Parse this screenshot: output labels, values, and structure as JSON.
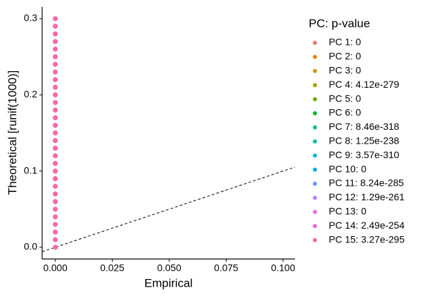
{
  "chart_data": {
    "type": "scatter",
    "x_label": "Empirical",
    "y_label": "Theoretical [runif(1000)]",
    "legend_title": "PC: p-value",
    "xlim": [
      -0.0058,
      0.1052
    ],
    "ylim": [
      -0.0154,
      0.3154
    ],
    "xticks": [
      {
        "value": 0,
        "label": "0.000"
      },
      {
        "value": 0.025,
        "label": "0.025"
      },
      {
        "value": 0.05,
        "label": "0.050"
      },
      {
        "value": 0.075,
        "label": "0.075"
      },
      {
        "value": 0.1,
        "label": "0.100"
      }
    ],
    "yticks": [
      {
        "value": 0,
        "label": "0.0"
      },
      0.1,
      0.2,
      0.3
    ],
    "x": [
      0,
      0,
      0,
      0,
      0,
      0,
      0,
      0,
      0,
      0,
      0,
      0,
      0,
      0,
      0,
      0,
      0,
      0,
      0,
      0,
      0,
      0,
      0,
      0,
      0,
      0,
      0,
      0,
      0,
      0,
      0
    ],
    "series": [
      {
        "name": "PC 1: 0",
        "color": "#F8766D",
        "values": [
          0,
          0.01,
          0.02,
          0.03,
          0.04,
          0.05,
          0.06,
          0.07,
          0.08,
          0.09,
          0.1,
          0.11,
          0.12,
          0.13,
          0.14,
          0.15,
          0.16,
          0.17,
          0.18,
          0.19,
          0.2,
          0.21,
          0.22,
          0.23,
          0.24,
          0.25,
          0.26,
          0.27,
          0.28,
          0.29,
          0.3
        ]
      },
      {
        "name": "PC 2: 0",
        "color": "#E58700",
        "values": [
          0,
          0.01,
          0.02,
          0.03,
          0.04,
          0.05,
          0.06,
          0.07,
          0.08,
          0.09,
          0.1,
          0.11,
          0.12,
          0.13,
          0.14,
          0.15,
          0.16,
          0.17,
          0.18,
          0.19,
          0.2,
          0.21,
          0.22,
          0.23,
          0.24,
          0.25,
          0.26,
          0.27,
          0.28,
          0.29,
          0.3
        ]
      },
      {
        "name": "PC 3: 0",
        "color": "#C99800",
        "values": [
          0,
          0.01,
          0.02,
          0.03,
          0.04,
          0.05,
          0.06,
          0.07,
          0.08,
          0.09,
          0.1,
          0.11,
          0.12,
          0.13,
          0.14,
          0.15,
          0.16,
          0.17,
          0.18,
          0.19,
          0.2,
          0.21,
          0.22,
          0.23,
          0.24,
          0.25,
          0.26,
          0.27,
          0.28,
          0.29,
          0.3
        ]
      },
      {
        "name": "PC 4: 4.12e-279",
        "color": "#A3A500",
        "values": [
          0,
          0.01,
          0.02,
          0.03,
          0.04,
          0.05,
          0.06,
          0.07,
          0.08,
          0.09,
          0.1,
          0.11,
          0.12,
          0.13,
          0.14,
          0.15,
          0.16,
          0.17,
          0.18,
          0.19,
          0.2,
          0.21,
          0.22,
          0.23,
          0.24,
          0.25,
          0.26,
          0.27,
          0.28,
          0.29,
          0.3
        ]
      },
      {
        "name": "PC 5: 0",
        "color": "#6BB100",
        "values": [
          0,
          0.01,
          0.02,
          0.03,
          0.04,
          0.05,
          0.06,
          0.07,
          0.08,
          0.09,
          0.1,
          0.11,
          0.12,
          0.13,
          0.14,
          0.15,
          0.16,
          0.17,
          0.18,
          0.19,
          0.2,
          0.21,
          0.22,
          0.23,
          0.24,
          0.25,
          0.26,
          0.27,
          0.28,
          0.29,
          0.3
        ]
      },
      {
        "name": "PC 6: 0",
        "color": "#00BA38",
        "values": [
          0,
          0.01,
          0.02,
          0.03,
          0.04,
          0.05,
          0.06,
          0.07,
          0.08,
          0.09,
          0.1,
          0.11,
          0.12,
          0.13,
          0.14,
          0.15,
          0.16,
          0.17,
          0.18,
          0.19,
          0.2,
          0.21,
          0.22,
          0.23,
          0.24,
          0.25,
          0.26,
          0.27,
          0.28,
          0.29,
          0.3
        ]
      },
      {
        "name": "PC 7: 8.46e-318",
        "color": "#00BF7D",
        "values": [
          0,
          0.01,
          0.02,
          0.03,
          0.04,
          0.05,
          0.06,
          0.07,
          0.08,
          0.09,
          0.1,
          0.11,
          0.12,
          0.13,
          0.14,
          0.15,
          0.16,
          0.17,
          0.18,
          0.19,
          0.2,
          0.21,
          0.22,
          0.23,
          0.24,
          0.25,
          0.26,
          0.27,
          0.28,
          0.29,
          0.3
        ]
      },
      {
        "name": "PC 8: 1.25e-238",
        "color": "#00C0AF",
        "values": [
          0,
          0.01,
          0.02,
          0.03,
          0.04,
          0.05,
          0.06,
          0.07,
          0.08,
          0.09,
          0.1,
          0.11,
          0.12,
          0.13,
          0.14,
          0.15,
          0.16,
          0.17,
          0.18,
          0.19,
          0.2,
          0.21,
          0.22,
          0.23,
          0.24,
          0.25,
          0.26,
          0.27,
          0.28,
          0.29,
          0.3
        ]
      },
      {
        "name": "PC 9: 3.57e-310",
        "color": "#00BCD8",
        "values": [
          0,
          0.01,
          0.02,
          0.03,
          0.04,
          0.05,
          0.06,
          0.07,
          0.08,
          0.09,
          0.1,
          0.11,
          0.12,
          0.13,
          0.14,
          0.15,
          0.16,
          0.17,
          0.18,
          0.19,
          0.2,
          0.21,
          0.22,
          0.23,
          0.24,
          0.25,
          0.26,
          0.27,
          0.28,
          0.29,
          0.3
        ]
      },
      {
        "name": "PC 10: 0",
        "color": "#00B0F6",
        "values": [
          0,
          0.01,
          0.02,
          0.03,
          0.04,
          0.05,
          0.06,
          0.07,
          0.08,
          0.09,
          0.1,
          0.11,
          0.12,
          0.13,
          0.14,
          0.15,
          0.16,
          0.17,
          0.18,
          0.19,
          0.2,
          0.21,
          0.22,
          0.23,
          0.24,
          0.25,
          0.26,
          0.27,
          0.28,
          0.29,
          0.3
        ]
      },
      {
        "name": "PC 11: 8.24e-285",
        "color": "#619CFF",
        "values": [
          0,
          0.01,
          0.02,
          0.03,
          0.04,
          0.05,
          0.06,
          0.07,
          0.08,
          0.09,
          0.1,
          0.11,
          0.12,
          0.13,
          0.14,
          0.15,
          0.16,
          0.17,
          0.18,
          0.19,
          0.2,
          0.21,
          0.22,
          0.23,
          0.24,
          0.25,
          0.26,
          0.27,
          0.28,
          0.29,
          0.3
        ]
      },
      {
        "name": "PC 12: 1.29e-261",
        "color": "#B983FF",
        "values": [
          0,
          0.01,
          0.02,
          0.03,
          0.04,
          0.05,
          0.06,
          0.07,
          0.08,
          0.09,
          0.1,
          0.11,
          0.12,
          0.13,
          0.14,
          0.15,
          0.16,
          0.17,
          0.18,
          0.19,
          0.2,
          0.21,
          0.22,
          0.23,
          0.24,
          0.25,
          0.26,
          0.27,
          0.28,
          0.29,
          0.3
        ]
      },
      {
        "name": "PC 13: 0",
        "color": "#E76BF3",
        "values": [
          0,
          0.01,
          0.02,
          0.03,
          0.04,
          0.05,
          0.06,
          0.07,
          0.08,
          0.09,
          0.1,
          0.11,
          0.12,
          0.13,
          0.14,
          0.15,
          0.16,
          0.17,
          0.18,
          0.19,
          0.2,
          0.21,
          0.22,
          0.23,
          0.24,
          0.25,
          0.26,
          0.27,
          0.28,
          0.29,
          0.3
        ]
      },
      {
        "name": "PC 14: 2.49e-254",
        "color": "#FD61D1",
        "values": [
          0,
          0.01,
          0.02,
          0.03,
          0.04,
          0.05,
          0.06,
          0.07,
          0.08,
          0.09,
          0.1,
          0.11,
          0.12,
          0.13,
          0.14,
          0.15,
          0.16,
          0.17,
          0.18,
          0.19,
          0.2,
          0.21,
          0.22,
          0.23,
          0.24,
          0.25,
          0.26,
          0.27,
          0.28,
          0.29,
          0.3
        ]
      },
      {
        "name": "PC 15: 3.27e-295",
        "color": "#FF67A4",
        "values": [
          0,
          0.01,
          0.02,
          0.03,
          0.04,
          0.05,
          0.06,
          0.07,
          0.08,
          0.09,
          0.1,
          0.11,
          0.12,
          0.13,
          0.14,
          0.15,
          0.16,
          0.17,
          0.18,
          0.19,
          0.2,
          0.21,
          0.22,
          0.23,
          0.24,
          0.25,
          0.26,
          0.27,
          0.28,
          0.29,
          0.3
        ]
      }
    ]
  }
}
